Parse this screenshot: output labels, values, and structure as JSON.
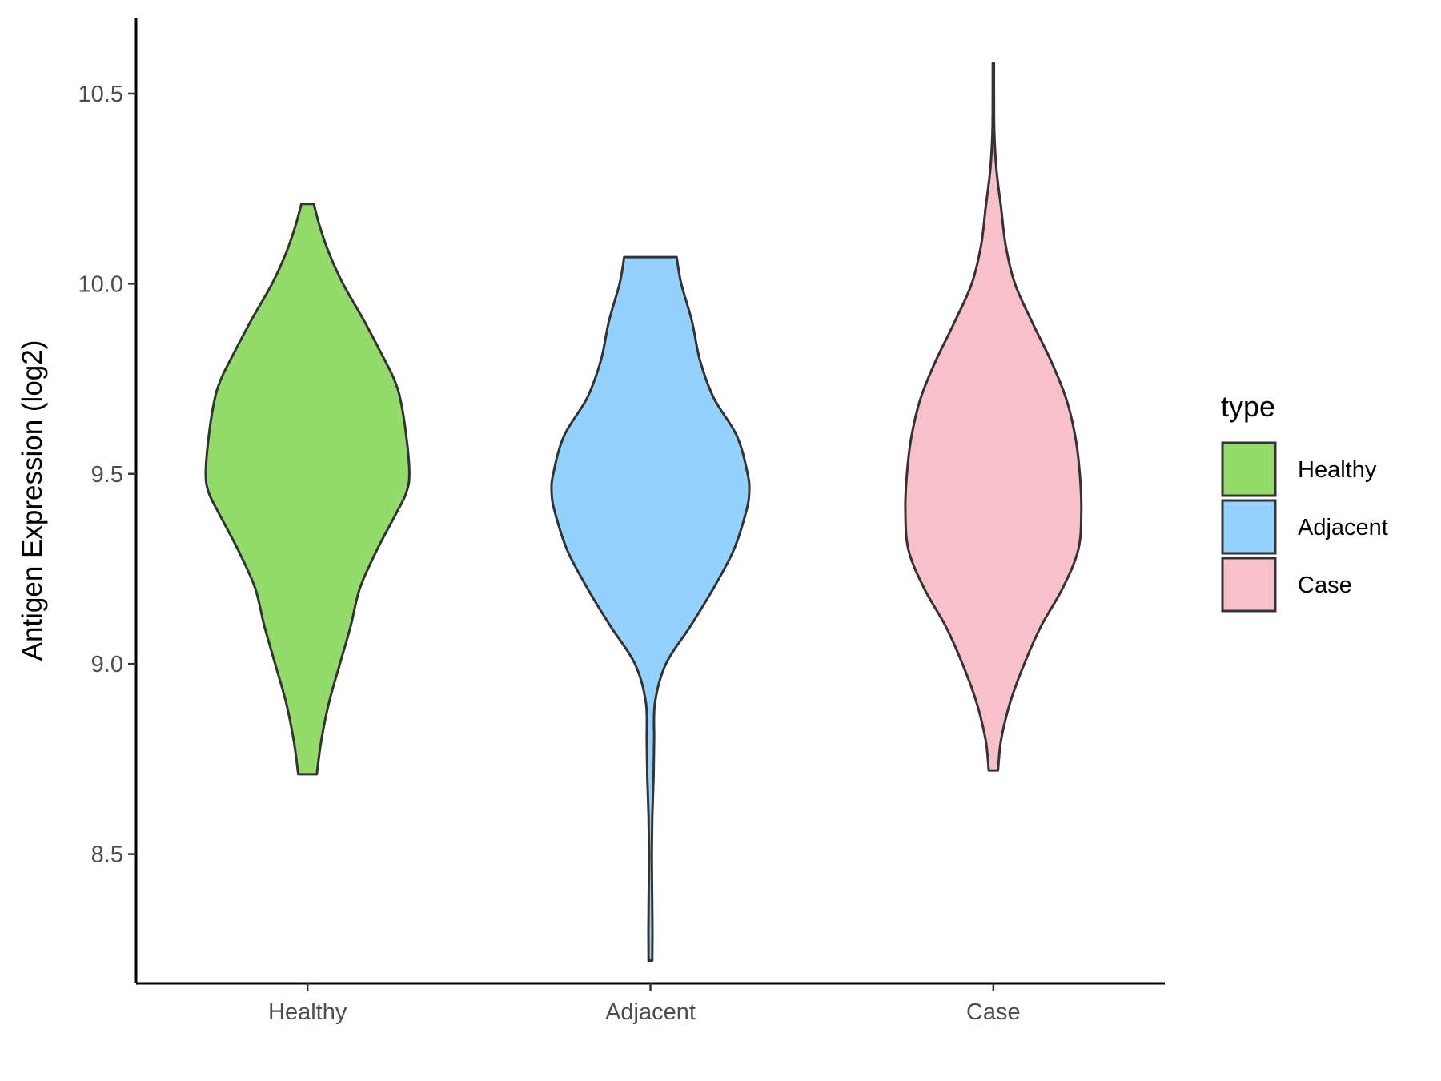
{
  "chart_data": {
    "type": "violin",
    "ylabel": "Antigen Expression (log2)",
    "xlabel": "",
    "ylim": [
      8.16,
      10.7
    ],
    "yticks": [
      8.5,
      9.0,
      9.5,
      10.0,
      10.5
    ],
    "ytick_labels": [
      "8.5",
      "9.0",
      "9.5",
      "10.0",
      "10.5"
    ],
    "grid": false,
    "categories": [
      "Healthy",
      "Adjacent",
      "Case"
    ],
    "legend": {
      "title": "type",
      "position": "right",
      "items": [
        {
          "label": "Healthy",
          "color": "#93dc6a"
        },
        {
          "label": "Adjacent",
          "color": "#94d2fe"
        },
        {
          "label": "Case",
          "color": "#f8c0cb"
        }
      ]
    },
    "series": [
      {
        "category": "Healthy",
        "color": "#93dc6a",
        "min": 8.71,
        "max": 10.21,
        "profile": [
          [
            10.21,
            0.04
          ],
          [
            10.15,
            0.08
          ],
          [
            10.08,
            0.14
          ],
          [
            10.0,
            0.23
          ],
          [
            9.9,
            0.37
          ],
          [
            9.8,
            0.5
          ],
          [
            9.75,
            0.56
          ],
          [
            9.7,
            0.6
          ],
          [
            9.6,
            0.64
          ],
          [
            9.5,
            0.66
          ],
          [
            9.45,
            0.64
          ],
          [
            9.4,
            0.58
          ],
          [
            9.3,
            0.45
          ],
          [
            9.2,
            0.34
          ],
          [
            9.1,
            0.28
          ],
          [
            9.0,
            0.21
          ],
          [
            8.9,
            0.14
          ],
          [
            8.8,
            0.09
          ],
          [
            8.71,
            0.06
          ]
        ]
      },
      {
        "category": "Adjacent",
        "color": "#94d2fe",
        "min": 8.22,
        "max": 10.07,
        "profile": [
          [
            10.07,
            0.17
          ],
          [
            10.0,
            0.2
          ],
          [
            9.9,
            0.27
          ],
          [
            9.8,
            0.32
          ],
          [
            9.7,
            0.41
          ],
          [
            9.6,
            0.56
          ],
          [
            9.5,
            0.63
          ],
          [
            9.45,
            0.64
          ],
          [
            9.4,
            0.62
          ],
          [
            9.3,
            0.54
          ],
          [
            9.2,
            0.41
          ],
          [
            9.1,
            0.26
          ],
          [
            9.0,
            0.1
          ],
          [
            8.9,
            0.03
          ],
          [
            8.8,
            0.024
          ],
          [
            8.7,
            0.02
          ],
          [
            8.6,
            0.012
          ],
          [
            8.5,
            0.009
          ],
          [
            8.4,
            0.011
          ],
          [
            8.3,
            0.013
          ],
          [
            8.22,
            0.012
          ]
        ]
      },
      {
        "category": "Case",
        "color": "#f8c0cb",
        "min": 8.72,
        "max": 10.58,
        "profile": [
          [
            10.58,
            0.004
          ],
          [
            10.5,
            0.004
          ],
          [
            10.4,
            0.006
          ],
          [
            10.3,
            0.02
          ],
          [
            10.2,
            0.05
          ],
          [
            10.1,
            0.08
          ],
          [
            10.0,
            0.14
          ],
          [
            9.9,
            0.25
          ],
          [
            9.8,
            0.37
          ],
          [
            9.7,
            0.47
          ],
          [
            9.6,
            0.53
          ],
          [
            9.5,
            0.56
          ],
          [
            9.4,
            0.57
          ],
          [
            9.3,
            0.55
          ],
          [
            9.2,
            0.45
          ],
          [
            9.1,
            0.31
          ],
          [
            9.0,
            0.2
          ],
          [
            8.9,
            0.11
          ],
          [
            8.8,
            0.05
          ],
          [
            8.72,
            0.03
          ]
        ]
      }
    ]
  }
}
